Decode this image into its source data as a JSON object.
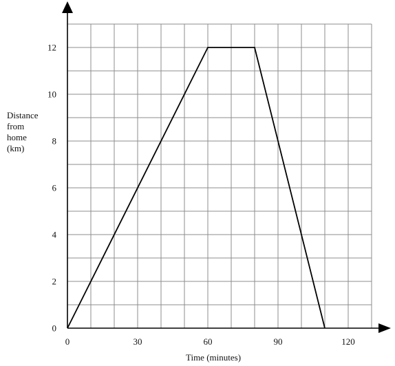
{
  "chart_data": {
    "type": "line",
    "title": "",
    "xlabel": "Time (minutes)",
    "ylabel": [
      "Distance",
      "from",
      "home",
      "(km)"
    ],
    "xlim": [
      0,
      130
    ],
    "ylim": [
      0,
      13
    ],
    "x_ticks": [
      0,
      30,
      60,
      90,
      120
    ],
    "y_ticks": [
      0,
      2,
      4,
      6,
      8,
      10,
      12
    ],
    "x_grid_step": 10,
    "y_grid_step": 1,
    "grid": true,
    "series": [
      {
        "x": [
          0,
          60,
          80,
          110
        ],
        "y": [
          0,
          12,
          12,
          0
        ]
      }
    ]
  }
}
